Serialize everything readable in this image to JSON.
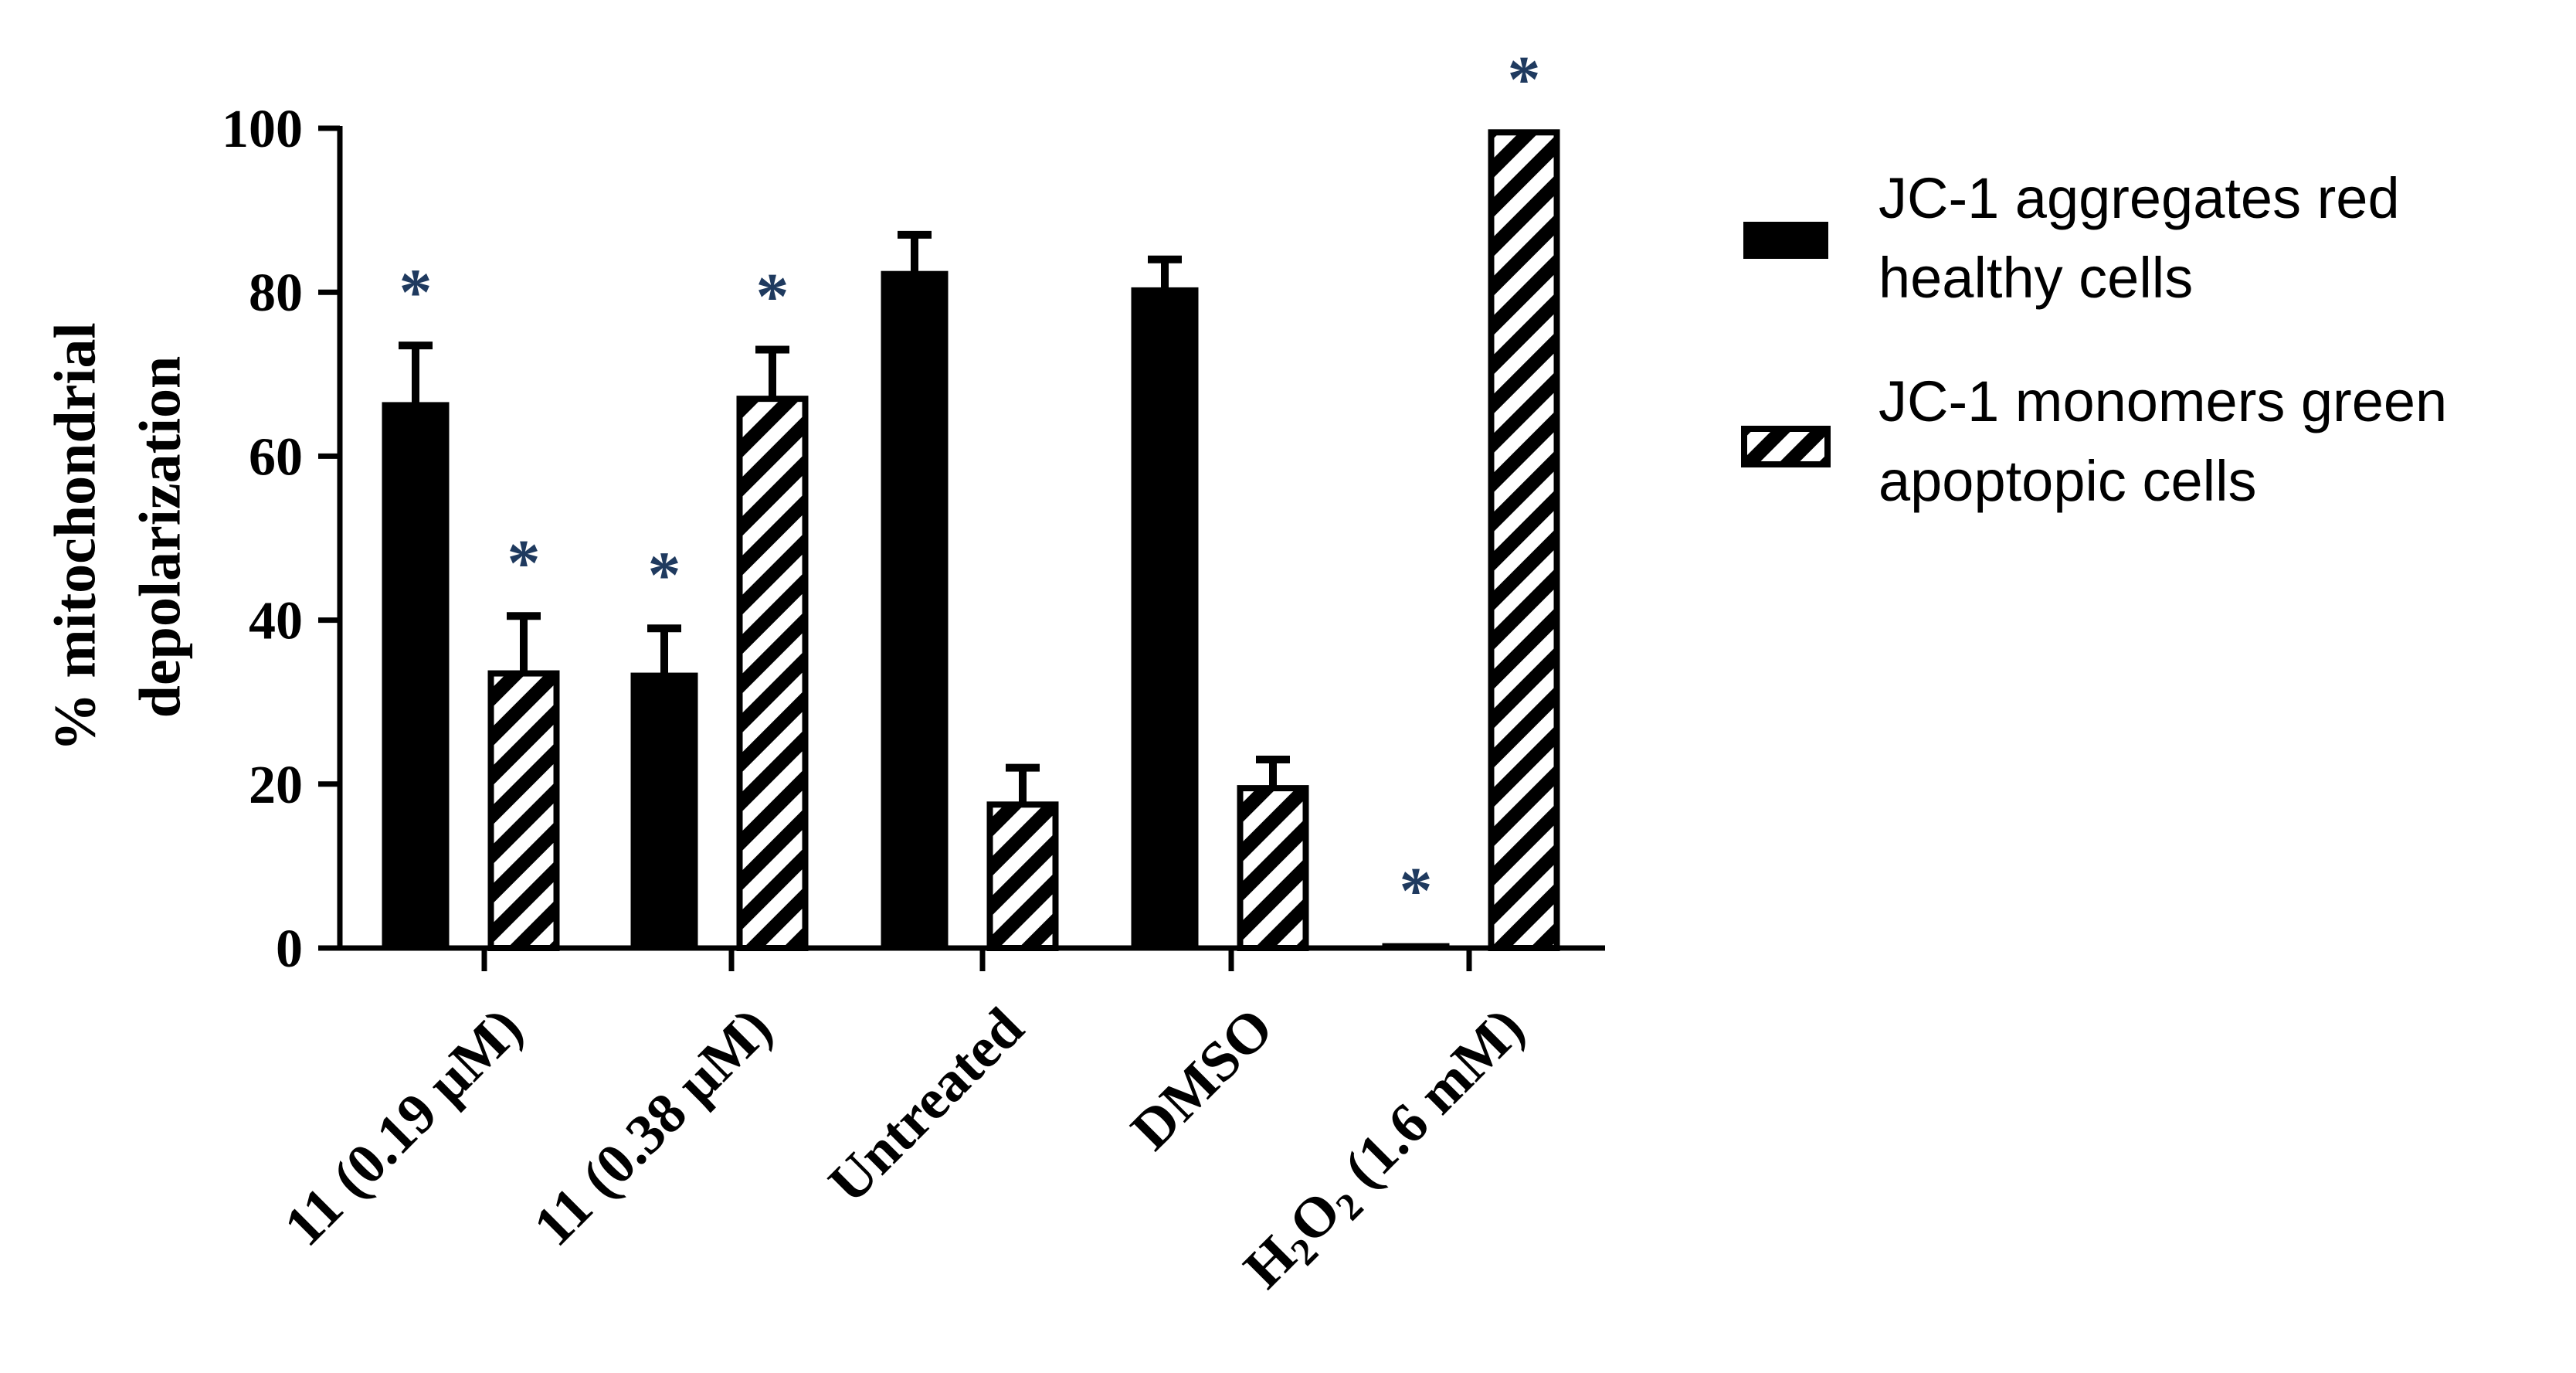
{
  "chart_data": {
    "type": "bar",
    "ylabel_lines": [
      "% mitochondrial",
      "depolarization"
    ],
    "ylim": [
      0,
      100
    ],
    "yticks": [
      0,
      20,
      40,
      60,
      80,
      100
    ],
    "grid": false,
    "legend_position": "right",
    "categories": [
      "11  (0.19 µM)",
      "11 (0.38 µM)",
      "Untreated",
      "DMSO",
      "H2O2 (1.6 mM)"
    ],
    "category_label_H2O2": {
      "H": "H",
      "sub1": "2",
      "O": "O",
      "sub2": "2",
      "rest": " (1.6 mM)"
    },
    "series": [
      {
        "name": "JC-1 aggregates red healthy cells",
        "legend_lines": [
          "JC-1 aggregates red",
          "healthy cells"
        ],
        "pattern": "solid",
        "color": "#000000",
        "values": [
          66.5,
          33.5,
          82.5,
          80.5,
          0.5
        ],
        "errors": [
          7,
          5.5,
          4.5,
          3.5,
          0
        ],
        "significant": [
          true,
          true,
          false,
          false,
          true
        ]
      },
      {
        "name": "JC-1 monomers green apoptopic cells",
        "legend_lines": [
          "JC-1 monomers green",
          "apoptopic cells"
        ],
        "pattern": "hatched",
        "color": "#000000",
        "values": [
          33.5,
          67,
          17.5,
          19.5,
          99.5
        ],
        "errors": [
          7,
          6,
          4.5,
          3.5,
          0
        ],
        "significant": [
          true,
          true,
          false,
          false,
          true
        ]
      }
    ],
    "significance_marker": "*",
    "significance_color": "#1f3a5f"
  }
}
